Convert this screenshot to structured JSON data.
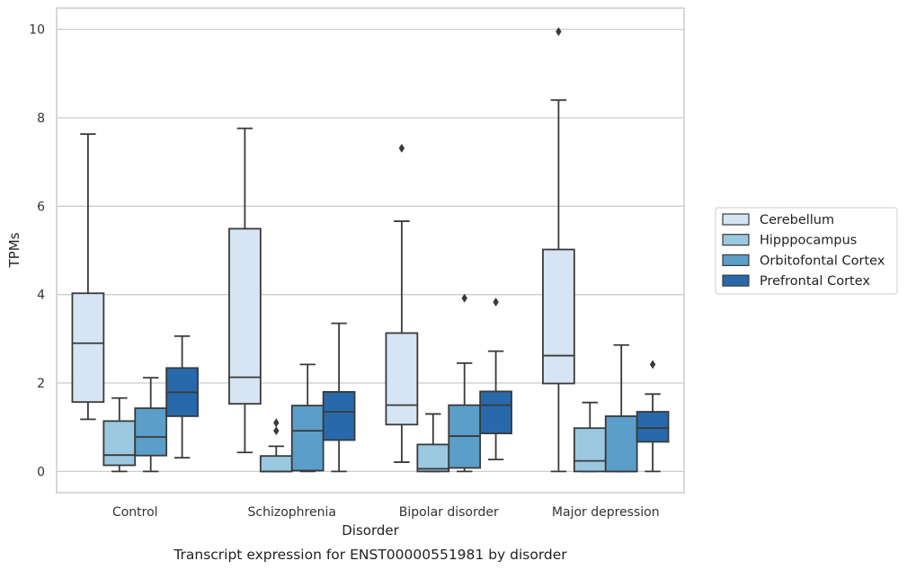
{
  "chart_data": {
    "type": "box",
    "title": "",
    "caption": "Transcript expression for ENST00000551981 by disorder",
    "xlabel": "Disorder",
    "ylabel": "TPMs",
    "ylim": [
      -0.48,
      10.48
    ],
    "yticks": [
      0,
      2,
      4,
      6,
      8,
      10
    ],
    "grid": "horizontal",
    "legend_position": "right",
    "categories": [
      "Control",
      "Schizophrenia",
      "Bipolar disorder",
      "Major depression"
    ],
    "series": [
      {
        "name": "Cerebellum",
        "color": "#d6e4f3",
        "boxes": [
          {
            "min": 1.18,
            "q1": 1.57,
            "median": 2.9,
            "q3": 4.03,
            "max": 7.63,
            "outliers": []
          },
          {
            "min": 0.43,
            "q1": 1.53,
            "median": 2.13,
            "q3": 5.49,
            "max": 7.76,
            "outliers": []
          },
          {
            "min": 0.21,
            "q1": 1.06,
            "median": 1.5,
            "q3": 3.13,
            "max": 5.66,
            "outliers": [
              7.31
            ]
          },
          {
            "min": 0.0,
            "q1": 1.99,
            "median": 2.62,
            "q3": 5.02,
            "max": 8.4,
            "outliers": [
              9.95
            ]
          }
        ]
      },
      {
        "name": "Hipppocampus",
        "color": "#9ac8e0",
        "boxes": [
          {
            "min": 0.0,
            "q1": 0.14,
            "median": 0.37,
            "q3": 1.14,
            "max": 1.66,
            "outliers": []
          },
          {
            "min": 0.0,
            "q1": 0.0,
            "median": 0.0,
            "q3": 0.35,
            "max": 0.57,
            "outliers": [
              0.92,
              1.1
            ]
          },
          {
            "min": 0.0,
            "q1": 0.0,
            "median": 0.06,
            "q3": 0.61,
            "max": 1.3,
            "outliers": []
          },
          {
            "min": 0.0,
            "q1": 0.0,
            "median": 0.24,
            "q3": 0.98,
            "max": 1.56,
            "outliers": []
          }
        ]
      },
      {
        "name": "Orbitofontal Cortex",
        "color": "#5a9ec9",
        "boxes": [
          {
            "min": 0.0,
            "q1": 0.36,
            "median": 0.78,
            "q3": 1.43,
            "max": 2.12,
            "outliers": []
          },
          {
            "min": 0.0,
            "q1": 0.02,
            "median": 0.92,
            "q3": 1.49,
            "max": 2.42,
            "outliers": []
          },
          {
            "min": 0.0,
            "q1": 0.08,
            "median": 0.8,
            "q3": 1.5,
            "max": 2.45,
            "outliers": [
              3.92
            ]
          },
          {
            "min": 0.0,
            "q1": 0.0,
            "median": 0.0,
            "q3": 1.25,
            "max": 2.86,
            "outliers": []
          }
        ]
      },
      {
        "name": "Prefrontal Cortex",
        "color": "#2769aa",
        "boxes": [
          {
            "min": 0.31,
            "q1": 1.25,
            "median": 1.79,
            "q3": 2.34,
            "max": 3.06,
            "outliers": []
          },
          {
            "min": 0.0,
            "q1": 0.71,
            "median": 1.35,
            "q3": 1.8,
            "max": 3.35,
            "outliers": []
          },
          {
            "min": 0.27,
            "q1": 0.86,
            "median": 1.5,
            "q3": 1.81,
            "max": 2.72,
            "outliers": [
              3.83
            ]
          },
          {
            "min": 0.0,
            "q1": 0.67,
            "median": 0.98,
            "q3": 1.35,
            "max": 1.75,
            "outliers": [
              2.42
            ]
          }
        ]
      }
    ]
  }
}
